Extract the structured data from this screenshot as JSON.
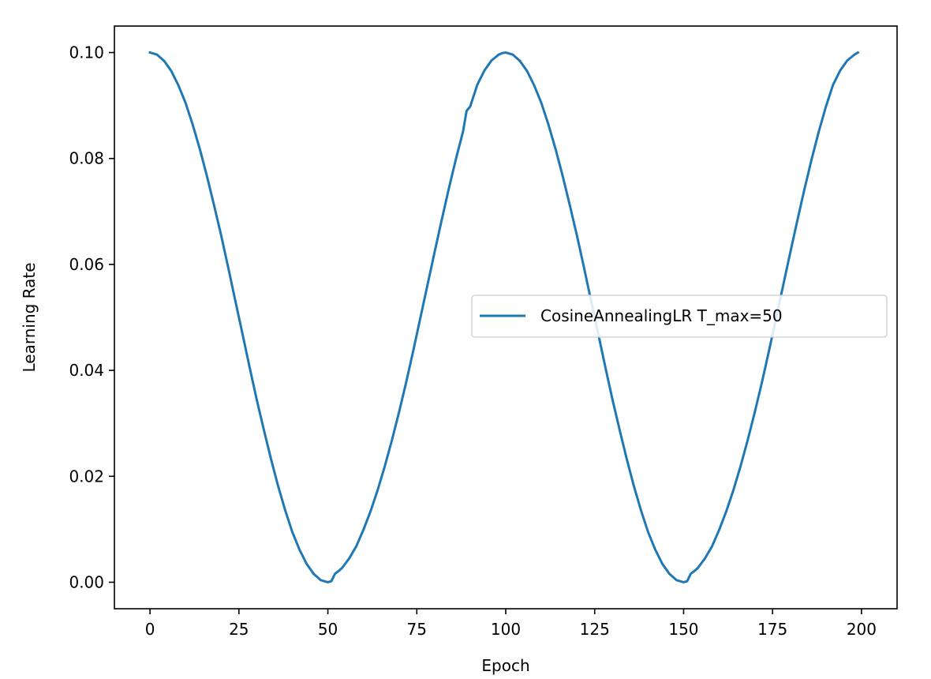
{
  "chart_data": {
    "type": "line",
    "title": "",
    "xlabel": "Epoch",
    "ylabel": "Learning Rate",
    "xlim": [
      -10,
      210
    ],
    "ylim": [
      -0.005,
      0.105
    ],
    "xticks": [
      0,
      25,
      50,
      75,
      100,
      125,
      150,
      175,
      200
    ],
    "xtick_labels": [
      "0",
      "25",
      "50",
      "75",
      "100",
      "125",
      "150",
      "175",
      "200"
    ],
    "yticks": [
      0.0,
      0.02,
      0.04,
      0.06,
      0.08,
      0.1
    ],
    "ytick_labels": [
      "0.00",
      "0.02",
      "0.04",
      "0.06",
      "0.08",
      "0.10"
    ],
    "grid": false,
    "legend_position": "center-right",
    "series": [
      {
        "name": "CosineAnnealingLR T_max=50",
        "color": "#1f77b4",
        "x": [
          0,
          2,
          4,
          6,
          8,
          10,
          12,
          14,
          16,
          18,
          20,
          22,
          24,
          26,
          28,
          30,
          32,
          34,
          36,
          38,
          40,
          42,
          44,
          46,
          48,
          50,
          51,
          52,
          53,
          54,
          56,
          58,
          60,
          62,
          64,
          66,
          68,
          70,
          72,
          74,
          76,
          78,
          80,
          82,
          84,
          86,
          88,
          89,
          90,
          92,
          94,
          96,
          98,
          99,
          100,
          102,
          104,
          106,
          108,
          110,
          112,
          114,
          116,
          118,
          120,
          122,
          124,
          126,
          128,
          130,
          132,
          134,
          136,
          138,
          140,
          142,
          144,
          146,
          148,
          150,
          151,
          152,
          153,
          154,
          156,
          158,
          160,
          162,
          164,
          166,
          168,
          170,
          172,
          174,
          176,
          178,
          180,
          182,
          184,
          186,
          188,
          190,
          192,
          194,
          196,
          198,
          199
        ],
        "y": [
          0.1,
          0.0996,
          0.0984,
          0.0965,
          0.0938,
          0.0905,
          0.0864,
          0.0818,
          0.0767,
          0.0712,
          0.0655,
          0.0594,
          0.0531,
          0.0469,
          0.0406,
          0.0345,
          0.0288,
          0.0233,
          0.0182,
          0.0136,
          0.0095,
          0.0062,
          0.0035,
          0.0016,
          0.0004,
          0.0,
          0.0002,
          0.0016,
          0.0021,
          0.0027,
          0.0045,
          0.0068,
          0.0099,
          0.0134,
          0.0174,
          0.0219,
          0.0268,
          0.0321,
          0.0377,
          0.0437,
          0.0499,
          0.0561,
          0.0623,
          0.0684,
          0.0743,
          0.0799,
          0.0851,
          0.089,
          0.0898,
          0.0939,
          0.0966,
          0.0985,
          0.0996,
          0.0999,
          0.1,
          0.0996,
          0.0984,
          0.0965,
          0.0938,
          0.0905,
          0.0864,
          0.0818,
          0.0767,
          0.0712,
          0.0655,
          0.0594,
          0.0531,
          0.0469,
          0.0406,
          0.0345,
          0.0288,
          0.0233,
          0.0182,
          0.0136,
          0.0095,
          0.0062,
          0.0035,
          0.0016,
          0.0004,
          0.0,
          0.0002,
          0.0016,
          0.0021,
          0.0027,
          0.0045,
          0.0068,
          0.0099,
          0.0134,
          0.0174,
          0.0219,
          0.0268,
          0.0321,
          0.0377,
          0.0437,
          0.0499,
          0.0561,
          0.0623,
          0.0684,
          0.0743,
          0.0799,
          0.0851,
          0.0898,
          0.0939,
          0.0966,
          0.0985,
          0.0996,
          0.1
        ]
      }
    ]
  }
}
